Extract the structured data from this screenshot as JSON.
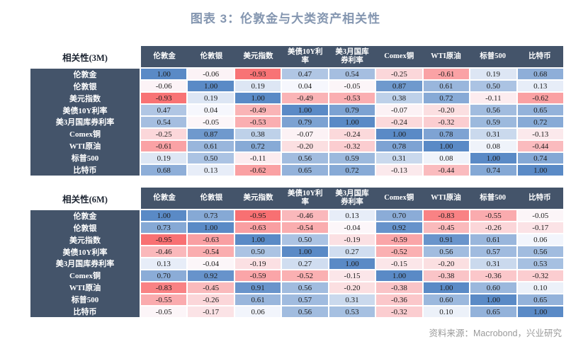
{
  "title": "图表 3：伦敦金与大类资产相关性",
  "footer": "资料来源：Macrobond，兴业研究",
  "colors": {
    "title_text": "#8496B0",
    "header_bg": "#44546A",
    "header_text": "#FFFFFF",
    "cell_text": "#1C1C1C",
    "scale_negative": "#F8696B",
    "scale_midpoint": "#FCFCFF",
    "scale_positive": "#5A8AC6",
    "footer_text": "#999999"
  },
  "chart_data": [
    {
      "type": "heatmap",
      "title": "相关性(3M)",
      "period": "3M",
      "legend_position": "none",
      "grid": false,
      "scale": {
        "min": -1,
        "mid": 0,
        "max": 1
      },
      "categories": [
        "伦敦金",
        "伦敦银",
        "美元指数",
        "美债10Y利率",
        "美3月国库券利率",
        "Comex铜",
        "WTI原油",
        "标普500",
        "比特币"
      ],
      "column_labels": [
        "伦敦金",
        "伦敦银",
        "美元指数",
        "美债10Y利\n率",
        "美3月国库\n券利率",
        "Comex铜",
        "WTI原油",
        "标普500",
        "比特币"
      ],
      "matrix": [
        [
          1.0,
          -0.06,
          -0.93,
          0.47,
          0.54,
          -0.25,
          -0.61,
          0.19,
          0.68
        ],
        [
          -0.06,
          1.0,
          0.19,
          0.04,
          -0.05,
          0.87,
          0.61,
          0.5,
          0.13
        ],
        [
          -0.93,
          0.19,
          1.0,
          -0.49,
          -0.53,
          0.38,
          0.72,
          -0.11,
          -0.62
        ],
        [
          0.47,
          0.04,
          -0.49,
          1.0,
          0.79,
          -0.07,
          -0.2,
          0.56,
          0.65
        ],
        [
          0.54,
          -0.05,
          -0.53,
          0.79,
          1.0,
          -0.24,
          -0.32,
          0.59,
          0.72
        ],
        [
          -0.25,
          0.87,
          0.38,
          -0.07,
          -0.24,
          1.0,
          0.78,
          0.31,
          -0.13
        ],
        [
          -0.61,
          0.61,
          0.72,
          -0.2,
          -0.32,
          0.78,
          1.0,
          0.08,
          -0.44
        ],
        [
          0.19,
          0.5,
          -0.11,
          0.56,
          0.59,
          0.31,
          0.08,
          1.0,
          0.74
        ],
        [
          0.68,
          0.13,
          -0.62,
          0.65,
          0.72,
          -0.13,
          -0.44,
          0.74,
          1.0
        ]
      ]
    },
    {
      "type": "heatmap",
      "title": "相关性(6M)",
      "period": "6M",
      "legend_position": "none",
      "grid": false,
      "scale": {
        "min": -1,
        "mid": 0,
        "max": 1
      },
      "categories": [
        "伦敦金",
        "伦敦银",
        "美元指数",
        "美债10Y利率",
        "美3月国库券利率",
        "Comex铜",
        "WTI原油",
        "标普500",
        "比特币"
      ],
      "column_labels": [
        "伦敦金",
        "伦敦银",
        "美元指数",
        "美债10Y利\n率",
        "美3月国库\n券利率",
        "Comex铜",
        "WTI原油",
        "标普500",
        "比特币"
      ],
      "matrix": [
        [
          1.0,
          0.73,
          -0.95,
          -0.46,
          0.13,
          0.7,
          -0.83,
          -0.55,
          -0.05
        ],
        [
          0.73,
          1.0,
          -0.63,
          -0.54,
          -0.04,
          0.92,
          -0.45,
          -0.26,
          -0.17
        ],
        [
          -0.95,
          -0.63,
          1.0,
          0.5,
          -0.19,
          -0.59,
          0.91,
          0.61,
          0.06
        ],
        [
          -0.46,
          -0.54,
          0.5,
          1.0,
          0.27,
          -0.52,
          0.56,
          0.57,
          0.56
        ],
        [
          0.13,
          -0.04,
          -0.19,
          0.27,
          1.0,
          -0.15,
          -0.2,
          0.31,
          0.53
        ],
        [
          0.7,
          0.92,
          -0.59,
          -0.52,
          -0.15,
          1.0,
          -0.38,
          -0.36,
          -0.32
        ],
        [
          -0.83,
          -0.45,
          0.91,
          0.56,
          -0.2,
          -0.38,
          1.0,
          0.6,
          0.1
        ],
        [
          -0.55,
          -0.26,
          0.61,
          0.57,
          0.31,
          -0.36,
          0.6,
          1.0,
          0.65
        ],
        [
          -0.05,
          -0.17,
          0.06,
          0.56,
          0.53,
          -0.32,
          0.1,
          0.65,
          1.0
        ]
      ]
    }
  ]
}
